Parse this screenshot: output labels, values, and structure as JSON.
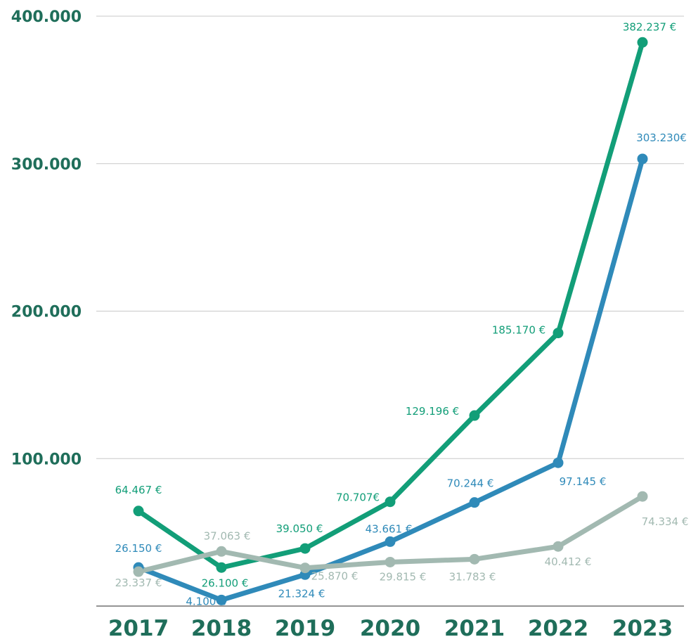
{
  "chart_data": {
    "type": "line",
    "title": "",
    "xlabel": "",
    "ylabel": "",
    "categories": [
      "2017",
      "2018",
      "2019",
      "2020",
      "2021",
      "2022",
      "2023"
    ],
    "ylim": [
      0,
      400000
    ],
    "yticks": [
      {
        "value": 100000,
        "label": "100.000"
      },
      {
        "value": 200000,
        "label": "200.000"
      },
      {
        "value": 300000,
        "label": "300.000"
      },
      {
        "value": 400000,
        "label": "400.000"
      }
    ],
    "grid": true,
    "legend": "none",
    "colors": {
      "tick_text": "#1f6e5a",
      "gridline": "#c8c8c8",
      "axis": "#555555"
    },
    "series": [
      {
        "color": "#129e78",
        "values": [
          64467,
          26100,
          39050,
          70707,
          129196,
          185170,
          382237
        ],
        "labels": [
          "64.467 €",
          "26.100 €",
          "39.050 €",
          "70.707€",
          "129.196 €",
          "185.170  €",
          "382.237 €"
        ]
      },
      {
        "color": "#2f8ab9",
        "values": [
          26150,
          4100,
          21324,
          43661,
          70244,
          97145,
          303230
        ],
        "labels": [
          "26.150 €",
          "4.100 €",
          "21.324 €",
          "43.661 €",
          "70.244 €",
          "97.145 €",
          "303.230€"
        ]
      },
      {
        "color": "#a2b9b1",
        "values": [
          23337,
          37063,
          25870,
          29815,
          31783,
          40412,
          74334
        ],
        "labels": [
          "23.337 €",
          "37.063 €",
          "25.870 €",
          "29.815 €",
          "31.783 €",
          "40.412 €",
          "74.334 €"
        ]
      }
    ]
  }
}
